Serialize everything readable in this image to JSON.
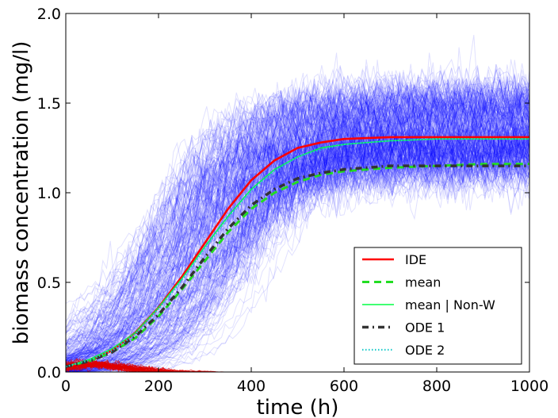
{
  "chart_data": {
    "type": "line",
    "xlabel": "time (h)",
    "ylabel": "biomass concentration (mg/l)",
    "xlim": [
      0,
      1000
    ],
    "ylim": [
      0,
      2.0
    ],
    "x_ticks": [
      "0",
      "200",
      "400",
      "600",
      "800",
      "1000"
    ],
    "y_ticks": [
      "0.0",
      "0.5",
      "1.0",
      "1.5",
      "2.0"
    ],
    "grid": false,
    "legend_position": "lower-right",
    "background_trajectories": {
      "color": "#0000ff",
      "description_count": 1000,
      "plateau_range": [
        0.9,
        1.75
      ],
      "extinct_color": "#e00000"
    },
    "series": [
      {
        "name": "IDE",
        "color": "#ff0000",
        "style": "solid",
        "x": [
          0,
          50,
          100,
          150,
          200,
          250,
          300,
          350,
          400,
          450,
          500,
          550,
          600,
          650,
          700,
          800,
          900,
          1000
        ],
        "y": [
          0.03,
          0.06,
          0.12,
          0.22,
          0.36,
          0.53,
          0.72,
          0.91,
          1.07,
          1.18,
          1.25,
          1.28,
          1.3,
          1.305,
          1.31,
          1.31,
          1.31,
          1.31
        ]
      },
      {
        "name": "mean",
        "color": "#22dd22",
        "style": "dashed",
        "x": [
          0,
          50,
          100,
          150,
          200,
          250,
          300,
          350,
          400,
          450,
          500,
          550,
          600,
          650,
          700,
          800,
          900,
          1000
        ],
        "y": [
          0.03,
          0.06,
          0.11,
          0.19,
          0.31,
          0.46,
          0.62,
          0.78,
          0.91,
          1.0,
          1.06,
          1.1,
          1.12,
          1.13,
          1.14,
          1.15,
          1.16,
          1.16
        ]
      },
      {
        "name": "mean | Non-W",
        "color": "#00ff44",
        "style": "thin",
        "x": [
          0,
          50,
          100,
          150,
          200,
          250,
          300,
          350,
          400,
          450,
          500,
          550,
          600,
          650,
          700,
          800,
          900,
          1000
        ],
        "y": [
          0.03,
          0.07,
          0.13,
          0.22,
          0.36,
          0.52,
          0.7,
          0.87,
          1.02,
          1.13,
          1.2,
          1.25,
          1.27,
          1.28,
          1.29,
          1.3,
          1.3,
          1.3
        ]
      },
      {
        "name": "ODE 1",
        "color": "#333333",
        "style": "dashdot",
        "x": [
          0,
          50,
          100,
          150,
          200,
          250,
          300,
          350,
          400,
          450,
          500,
          550,
          600,
          650,
          700,
          800,
          900,
          1000
        ],
        "y": [
          0.03,
          0.06,
          0.11,
          0.2,
          0.32,
          0.47,
          0.64,
          0.8,
          0.93,
          1.02,
          1.08,
          1.11,
          1.13,
          1.14,
          1.15,
          1.15,
          1.15,
          1.15
        ]
      },
      {
        "name": "ODE 2",
        "color": "#22cccc",
        "style": "dotted",
        "x": [
          0,
          50,
          100,
          150,
          200,
          250,
          300,
          350,
          400,
          450,
          500,
          550,
          600,
          650,
          700,
          800,
          900,
          1000
        ],
        "y": [
          0.03,
          0.065,
          0.12,
          0.21,
          0.35,
          0.51,
          0.69,
          0.86,
          1.01,
          1.12,
          1.2,
          1.24,
          1.27,
          1.28,
          1.29,
          1.3,
          1.3,
          1.3
        ]
      }
    ]
  }
}
